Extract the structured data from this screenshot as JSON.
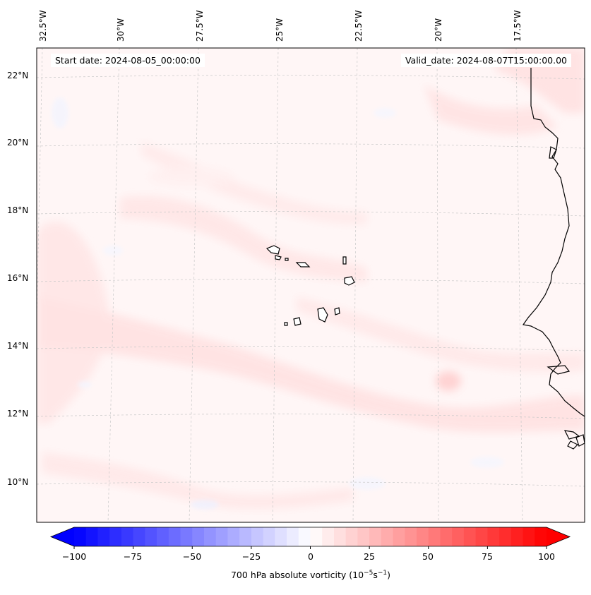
{
  "map": {
    "start_date": "Start date: 2024-08-05_00:00:00",
    "valid_date": "Valid_date: 2024-08-07T15:00:00.00",
    "longitude_labels": [
      "32.5°W",
      "30°W",
      "27.5°W",
      "25°W",
      "22.5°W",
      "20°W",
      "17.5°W"
    ],
    "latitude_labels": [
      "22°N",
      "20°N",
      "18°N",
      "16°N",
      "14°N",
      "12°N",
      "10°N"
    ],
    "field": "700 hPa absolute vorticity",
    "islands": [
      "Cape Verde Islands"
    ],
    "coastline": "West Africa"
  },
  "colorbar": {
    "ticks": [
      "−100",
      "−75",
      "−50",
      "−25",
      "0",
      "25",
      "50",
      "75",
      "100"
    ],
    "label_prefix": "700 hPa absolute vorticity (10",
    "label_exp1": "−5",
    "label_mid": "s",
    "label_exp2": "−1",
    "label_suffix": ")",
    "range": [
      -100,
      100
    ],
    "extend": "both",
    "min_color": "#0000ff",
    "mid_color": "#ffffff",
    "max_color": "#ff0000"
  }
}
